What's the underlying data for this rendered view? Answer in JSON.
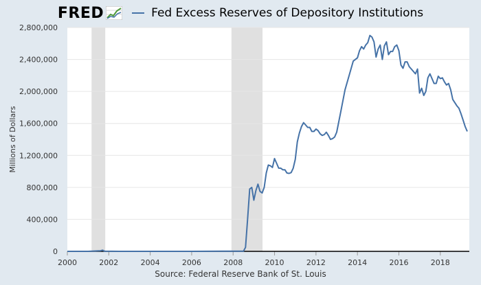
{
  "header": {
    "logo_text": "FRED",
    "title": "Fed Excess Reserves of Depository Institutions"
  },
  "source": "Source: Federal Reserve Bank of St. Louis",
  "colors": {
    "line": "#4572a7",
    "background": "#e1e9f0",
    "plot": "#ffffff",
    "recession": "#e0e0e0",
    "grid": "#e6e6e6"
  },
  "chart_data": {
    "type": "line",
    "title": "Fed Excess Reserves of Depository Institutions",
    "xlabel": "",
    "ylabel": "Millions of Dollars",
    "xlim": [
      2000.0,
      2019.4
    ],
    "ylim": [
      0,
      2800000
    ],
    "grid": true,
    "x_ticks": [
      2000,
      2002,
      2004,
      2006,
      2008,
      2010,
      2012,
      2014,
      2016,
      2018
    ],
    "x_tick_labels": [
      "2000",
      "2002",
      "2004",
      "2006",
      "2008",
      "2010",
      "2012",
      "2014",
      "2016",
      "2018"
    ],
    "y_ticks": [
      0,
      400000,
      800000,
      1200000,
      1600000,
      2000000,
      2400000,
      2800000
    ],
    "y_tick_labels": [
      "0",
      "400,000",
      "800,000",
      "1,200,000",
      "1,600,000",
      "2,000,000",
      "2,400,000",
      "2,800,000"
    ],
    "recessions": [
      [
        2001.17,
        2001.83
      ],
      [
        2007.92,
        2009.42
      ]
    ],
    "series": [
      {
        "x": [
          2000.0,
          2001.0,
          2001.6,
          2001.7,
          2001.8,
          2002.5,
          2004.0,
          2006.0,
          2007.5,
          2008.5,
          2008.6,
          2008.7,
          2008.8,
          2008.9,
          2009.0,
          2009.1,
          2009.2,
          2009.3,
          2009.4,
          2009.5,
          2009.6,
          2009.7,
          2009.8,
          2009.9,
          2010.0,
          2010.1,
          2010.2,
          2010.3,
          2010.4,
          2010.5,
          2010.6,
          2010.7,
          2010.8,
          2010.9,
          2011.0,
          2011.1,
          2011.2,
          2011.3,
          2011.4,
          2011.5,
          2011.6,
          2011.7,
          2011.8,
          2011.9,
          2012.0,
          2012.1,
          2012.2,
          2012.3,
          2012.4,
          2012.5,
          2012.6,
          2012.7,
          2012.8,
          2012.9,
          2013.0,
          2013.2,
          2013.4,
          2013.6,
          2013.8,
          2014.0,
          2014.1,
          2014.2,
          2014.3,
          2014.4,
          2014.5,
          2014.6,
          2014.7,
          2014.8,
          2014.9,
          2015.0,
          2015.1,
          2015.2,
          2015.3,
          2015.4,
          2015.5,
          2015.6,
          2015.7,
          2015.8,
          2015.9,
          2016.0,
          2016.1,
          2016.2,
          2016.3,
          2016.4,
          2016.5,
          2016.6,
          2016.7,
          2016.8,
          2016.9,
          2017.0,
          2017.1,
          2017.2,
          2017.3,
          2017.4,
          2017.5,
          2017.6,
          2017.7,
          2017.8,
          2017.9,
          2018.0,
          2018.1,
          2018.2,
          2018.3,
          2018.4,
          2018.5,
          2018.6,
          2018.7,
          2018.8,
          2018.9,
          2019.0,
          2019.1,
          2019.2,
          2019.3
        ],
        "y": [
          0,
          0,
          8000,
          15000,
          2000,
          0,
          0,
          0,
          2000,
          2000,
          50000,
          400000,
          780000,
          800000,
          640000,
          760000,
          840000,
          750000,
          730000,
          800000,
          980000,
          1080000,
          1070000,
          1050000,
          1160000,
          1100000,
          1040000,
          1040000,
          1020000,
          1020000,
          980000,
          975000,
          985000,
          1040000,
          1150000,
          1370000,
          1480000,
          1560000,
          1610000,
          1580000,
          1550000,
          1550000,
          1500000,
          1500000,
          1530000,
          1510000,
          1470000,
          1450000,
          1460000,
          1490000,
          1450000,
          1400000,
          1410000,
          1430000,
          1490000,
          1750000,
          2020000,
          2200000,
          2380000,
          2420000,
          2510000,
          2560000,
          2530000,
          2580000,
          2610000,
          2700000,
          2680000,
          2620000,
          2430000,
          2530000,
          2580000,
          2400000,
          2570000,
          2620000,
          2460000,
          2500000,
          2500000,
          2560000,
          2580000,
          2510000,
          2330000,
          2290000,
          2370000,
          2370000,
          2310000,
          2280000,
          2250000,
          2220000,
          2280000,
          1980000,
          2040000,
          1950000,
          2000000,
          2170000,
          2220000,
          2160000,
          2100000,
          2100000,
          2190000,
          2160000,
          2170000,
          2120000,
          2080000,
          2100000,
          2020000,
          1900000,
          1860000,
          1820000,
          1790000,
          1720000,
          1640000,
          1560000,
          1500000
        ]
      }
    ]
  }
}
